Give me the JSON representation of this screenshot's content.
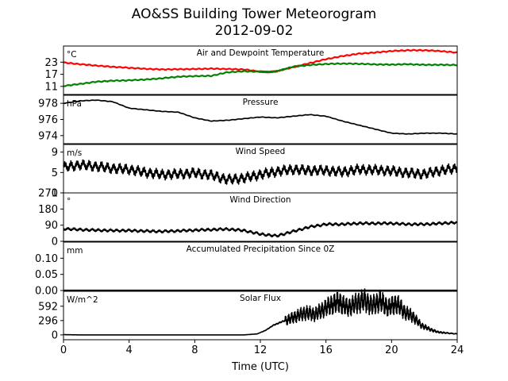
{
  "figure": {
    "title_line1": "AO&SS Building Tower Meteorogram",
    "title_line2": "2012-09-02",
    "xlabel": "Time (UTC)"
  },
  "chart_data": [
    {
      "type": "line",
      "title": "Air and Dewpoint Temperature",
      "unit": "°C",
      "ylim": [
        7,
        31
      ],
      "yticks": [
        11,
        17,
        23
      ],
      "xlim": [
        0,
        24
      ],
      "series": [
        {
          "color": "#ff0000",
          "x": [
            0,
            1,
            2,
            3,
            4,
            5,
            6,
            7,
            8,
            9,
            10,
            11,
            12,
            12.5,
            13,
            14,
            15,
            16,
            17,
            18,
            19,
            20,
            21,
            22,
            23,
            24
          ],
          "y": [
            22.8,
            22,
            21.3,
            20.7,
            20.2,
            19.7,
            19.4,
            19.5,
            19.6,
            19.8,
            19.6,
            19.4,
            18.3,
            18.1,
            18.5,
            20.5,
            22.5,
            24.5,
            26,
            27.2,
            27.8,
            28.5,
            28.9,
            28.9,
            28.5,
            27.7
          ]
        },
        {
          "color": "#008000",
          "x": [
            0,
            1,
            2,
            3,
            4,
            5,
            6,
            7,
            8,
            9,
            10,
            11,
            12,
            12.5,
            13,
            14,
            15,
            16,
            17,
            18,
            19,
            20,
            21,
            22,
            23,
            24
          ],
          "y": [
            11.2,
            12.2,
            13.3,
            13.8,
            14,
            14.4,
            15,
            15.8,
            16.1,
            16.2,
            18,
            18.5,
            18.3,
            18.1,
            18.5,
            20.8,
            21.6,
            22.1,
            22.3,
            22.2,
            21.9,
            21.8,
            22,
            21.7,
            21.7,
            21.6
          ]
        }
      ]
    },
    {
      "type": "line",
      "title": "Pressure",
      "unit": "hPa",
      "ylim": [
        973,
        979
      ],
      "yticks": [
        974,
        976,
        978
      ],
      "xlim": [
        0,
        24
      ],
      "series": [
        {
          "color": "#000000",
          "x": [
            0,
            1,
            2,
            3,
            4,
            5,
            6,
            7,
            8,
            9,
            10,
            11,
            12,
            13,
            14,
            15,
            16,
            17,
            18,
            19,
            20,
            21,
            22,
            23,
            24
          ],
          "y": [
            978.0,
            978.3,
            978.4,
            978.2,
            977.4,
            977.2,
            977.0,
            976.9,
            976.2,
            975.8,
            975.9,
            976.1,
            976.3,
            976.2,
            976.4,
            976.6,
            976.4,
            975.8,
            975.3,
            974.8,
            974.3,
            974.2,
            974.3,
            974.3,
            974.2
          ]
        }
      ]
    },
    {
      "type": "line",
      "title": "Wind Speed",
      "unit": "m/s",
      "ylim": [
        1,
        10.5
      ],
      "yticks": [
        1,
        5,
        9
      ],
      "xlim": [
        0,
        24
      ],
      "series": [
        {
          "color": "#000000",
          "x": [
            0,
            1,
            2,
            3,
            4,
            5,
            6,
            7,
            8,
            9,
            10,
            11,
            12,
            13,
            14,
            15,
            16,
            17,
            18,
            19,
            20,
            21,
            22,
            23,
            24
          ],
          "y": [
            6.0,
            6.5,
            6.2,
            5.8,
            5.6,
            5.0,
            4.6,
            4.7,
            4.9,
            4.5,
            3.6,
            3.9,
            4.6,
            5.2,
            5.6,
            5.4,
            5.4,
            5.1,
            5.6,
            5.5,
            5.3,
            4.9,
            4.7,
            5.4,
            5.8
          ]
        }
      ]
    },
    {
      "type": "line",
      "title": "Wind Direction",
      "unit": "°",
      "ylim": [
        0,
        270
      ],
      "yticks": [
        0,
        90,
        180,
        270
      ],
      "xlim": [
        0,
        24
      ],
      "series": [
        {
          "color": "#000000",
          "x": [
            0,
            1,
            2,
            3,
            4,
            5,
            6,
            7,
            8,
            9,
            10,
            11,
            12,
            13,
            14,
            15,
            16,
            17,
            18,
            19,
            20,
            21,
            22,
            23,
            24
          ],
          "y": [
            70,
            65,
            62,
            60,
            60,
            57,
            55,
            58,
            62,
            65,
            68,
            60,
            40,
            30,
            55,
            80,
            95,
            95,
            100,
            100,
            100,
            95,
            95,
            100,
            105
          ]
        }
      ]
    },
    {
      "type": "line",
      "title": "Accumulated Precipitation Since 0Z",
      "unit": "mm",
      "ylim": [
        0,
        0.15
      ],
      "yticks": [
        0.0,
        0.05,
        0.1
      ],
      "xlim": [
        0,
        24
      ],
      "series": [
        {
          "color": "#000000",
          "x": [
            0,
            24
          ],
          "y": [
            0,
            0
          ]
        }
      ]
    },
    {
      "type": "line",
      "title": "Solar Flux",
      "unit": "W/m^2",
      "ylim": [
        -100,
        900
      ],
      "yticks": [
        0,
        296,
        592
      ],
      "xlim": [
        0,
        24
      ],
      "series": [
        {
          "color": "#000000",
          "x": [
            0,
            1,
            2,
            3,
            4,
            5,
            6,
            7,
            8,
            9,
            10,
            11,
            11.8,
            12.3,
            12.8,
            13.3,
            13.8,
            14.3,
            14.8,
            15.3,
            15.8,
            16.3,
            16.8,
            17.3,
            17.8,
            18.3,
            18.8,
            19.3,
            19.8,
            20.3,
            20.8,
            21.3,
            21.8,
            22.3,
            22.8,
            23.3,
            24
          ],
          "y": [
            5,
            0,
            0,
            0,
            0,
            0,
            0,
            0,
            0,
            0,
            0,
            0,
            20,
            90,
            200,
            270,
            330,
            400,
            460,
            420,
            520,
            620,
            680,
            560,
            640,
            720,
            600,
            700,
            560,
            650,
            470,
            380,
            200,
            120,
            60,
            40,
            20
          ]
        }
      ]
    }
  ]
}
